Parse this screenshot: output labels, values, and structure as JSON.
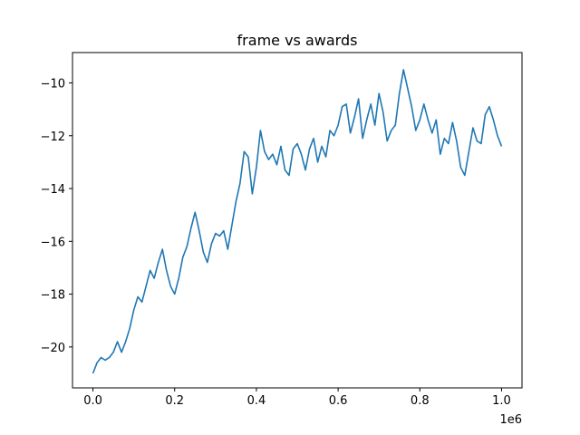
{
  "chart_data": {
    "type": "line",
    "title": "frame vs awards",
    "xlabel": "",
    "ylabel": "",
    "x_offset_label": "1e6",
    "xlim": [
      -0.05,
      1.05
    ],
    "ylim": [
      -21.55,
      -8.85
    ],
    "x_ticks": [
      0.0,
      0.2,
      0.4,
      0.6,
      0.8,
      1.0
    ],
    "x_tick_labels": [
      "0.0",
      "0.2",
      "0.4",
      "0.6",
      "0.8",
      "1.0"
    ],
    "y_ticks": [
      -20,
      -18,
      -16,
      -14,
      -12,
      -10
    ],
    "y_tick_labels": [
      "−20",
      "−18",
      "−16",
      "−14",
      "−12",
      "−10"
    ],
    "grid": false,
    "colors": {
      "series": "#1f77b4"
    },
    "series": [
      {
        "x": [
          0.0,
          0.01,
          0.02,
          0.03,
          0.04,
          0.05,
          0.06,
          0.07,
          0.08,
          0.09,
          0.1,
          0.11,
          0.12,
          0.13,
          0.14,
          0.15,
          0.16,
          0.17,
          0.18,
          0.19,
          0.2,
          0.21,
          0.22,
          0.23,
          0.24,
          0.25,
          0.26,
          0.27,
          0.28,
          0.29,
          0.3,
          0.31,
          0.32,
          0.33,
          0.34,
          0.35,
          0.36,
          0.37,
          0.38,
          0.39,
          0.4,
          0.41,
          0.42,
          0.43,
          0.44,
          0.45,
          0.46,
          0.47,
          0.48,
          0.49,
          0.5,
          0.51,
          0.52,
          0.53,
          0.54,
          0.55,
          0.56,
          0.57,
          0.58,
          0.59,
          0.6,
          0.61,
          0.62,
          0.63,
          0.64,
          0.65,
          0.66,
          0.67,
          0.68,
          0.69,
          0.7,
          0.71,
          0.72,
          0.73,
          0.74,
          0.75,
          0.76,
          0.77,
          0.78,
          0.79,
          0.8,
          0.81,
          0.82,
          0.83,
          0.84,
          0.85,
          0.86,
          0.87,
          0.88,
          0.89,
          0.9,
          0.91,
          0.92,
          0.93,
          0.94,
          0.95,
          0.96,
          0.97,
          0.98,
          0.99,
          1.0
        ],
        "y": [
          -21.0,
          -20.6,
          -20.4,
          -20.5,
          -20.4,
          -20.2,
          -19.8,
          -20.2,
          -19.8,
          -19.3,
          -18.6,
          -18.1,
          -18.3,
          -17.7,
          -17.1,
          -17.4,
          -16.8,
          -16.3,
          -17.1,
          -17.7,
          -18.0,
          -17.4,
          -16.6,
          -16.2,
          -15.5,
          -14.9,
          -15.6,
          -16.4,
          -16.8,
          -16.1,
          -15.7,
          -15.8,
          -15.6,
          -16.3,
          -15.4,
          -14.5,
          -13.8,
          -12.6,
          -12.8,
          -14.2,
          -13.2,
          -11.8,
          -12.6,
          -12.9,
          -12.7,
          -13.1,
          -12.4,
          -13.3,
          -13.5,
          -12.5,
          -12.3,
          -12.7,
          -13.3,
          -12.5,
          -12.1,
          -13.0,
          -12.4,
          -12.8,
          -11.8,
          -12.0,
          -11.6,
          -10.9,
          -10.8,
          -11.9,
          -11.3,
          -10.6,
          -12.1,
          -11.4,
          -10.8,
          -11.6,
          -10.4,
          -11.1,
          -12.2,
          -11.8,
          -11.6,
          -10.4,
          -9.5,
          -10.2,
          -10.9,
          -11.8,
          -11.4,
          -10.8,
          -11.4,
          -11.9,
          -11.4,
          -12.7,
          -12.1,
          -12.3,
          -11.5,
          -12.2,
          -13.2,
          -13.5,
          -12.6,
          -11.7,
          -12.2,
          -12.3,
          -11.2,
          -10.9,
          -11.4,
          -12.0,
          -12.4
        ]
      }
    ]
  }
}
